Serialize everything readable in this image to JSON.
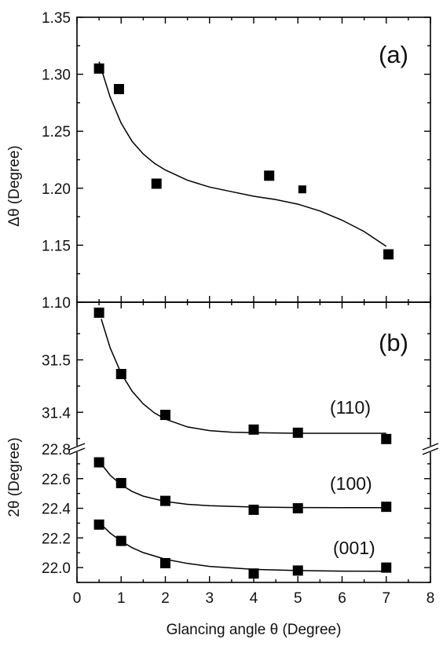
{
  "chart_data": [
    {
      "id": "a",
      "panel_label": "(a)",
      "type": "scatter",
      "ylabel": "Δθ (Degree)",
      "xlim": [
        0,
        8
      ],
      "ylim": [
        1.1,
        1.35
      ],
      "yticks": [
        "1.10",
        "1.15",
        "1.20",
        "1.25",
        "1.30",
        "1.35"
      ],
      "series": [
        {
          "x": [
            0.5,
            0.95,
            1.8,
            4.35,
            5.1,
            7.05
          ],
          "y": [
            1.305,
            1.287,
            1.204,
            1.211,
            1.199,
            1.142
          ],
          "marker_sizes": [
            13,
            13,
            13,
            13,
            10,
            13
          ],
          "fit_curve": {
            "x": [
              0.5,
              0.75,
              1.0,
              1.25,
              1.5,
              1.75,
              2.0,
              2.5,
              3.0,
              3.5,
              4.0,
              4.5,
              5.0,
              5.5,
              6.0,
              6.5,
              7.0
            ],
            "y": [
              1.311,
              1.28,
              1.257,
              1.241,
              1.23,
              1.222,
              1.216,
              1.207,
              1.201,
              1.197,
              1.193,
              1.19,
              1.186,
              1.18,
              1.172,
              1.162,
              1.149
            ]
          }
        }
      ]
    },
    {
      "id": "b",
      "panel_label": "(b)",
      "type": "scatter",
      "ylabel": "2θ (Degree)",
      "xlabel": "Glancing angle θ (Degree)",
      "xlim": [
        0,
        8
      ],
      "xticks": [
        "0",
        "1",
        "2",
        "3",
        "4",
        "5",
        "6",
        "7",
        "8"
      ],
      "broken_axis": true,
      "upper_ylim": [
        31.33,
        31.61
      ],
      "upper_yticks": [
        "31.4",
        "31.5"
      ],
      "lower_ylim": [
        21.9,
        22.8
      ],
      "lower_yticks": [
        "22.0",
        "22.2",
        "22.4",
        "22.6",
        "22.8"
      ],
      "series": [
        {
          "name": "(110)",
          "segment": "upper",
          "x": [
            0.5,
            1,
            2,
            4,
            5,
            7
          ],
          "y": [
            31.59,
            31.473,
            31.395,
            31.367,
            31.361,
            31.349
          ],
          "fit_curve": {
            "x": [
              0.55,
              0.75,
              1.0,
              1.25,
              1.5,
              1.75,
              2.0,
              2.5,
              3.0,
              3.5,
              4.0,
              5.0,
              6.0,
              7.0
            ],
            "y": [
              31.578,
              31.523,
              31.474,
              31.44,
              31.416,
              31.399,
              31.387,
              31.372,
              31.365,
              31.362,
              31.361,
              31.36,
              31.36,
              31.36
            ]
          }
        },
        {
          "name": "(100)",
          "segment": "lower",
          "x": [
            0.5,
            1,
            2,
            4,
            5,
            7
          ],
          "y": [
            22.71,
            22.57,
            22.45,
            22.39,
            22.4,
            22.41
          ],
          "fit_curve": {
            "x": [
              0.5,
              0.75,
              1.0,
              1.25,
              1.5,
              2.0,
              2.5,
              3.0,
              4.0,
              5.0,
              6.0,
              7.0
            ],
            "y": [
              22.718,
              22.623,
              22.558,
              22.513,
              22.482,
              22.446,
              22.427,
              22.417,
              22.408,
              22.405,
              22.404,
              22.404
            ]
          }
        },
        {
          "name": "(001)",
          "segment": "lower",
          "x": [
            0.5,
            1,
            2,
            4,
            5,
            7
          ],
          "y": [
            22.29,
            22.18,
            22.03,
            21.96,
            21.98,
            22.0
          ],
          "fit_curve": {
            "x": [
              0.5,
              0.75,
              1.0,
              1.25,
              1.5,
              2.0,
              2.5,
              3.0,
              4.0,
              5.0,
              6.0,
              7.0
            ],
            "y": [
              22.305,
              22.233,
              22.178,
              22.134,
              22.101,
              22.056,
              22.028,
              22.008,
              21.988,
              21.98,
              21.976,
              21.975
            ]
          }
        }
      ]
    }
  ]
}
